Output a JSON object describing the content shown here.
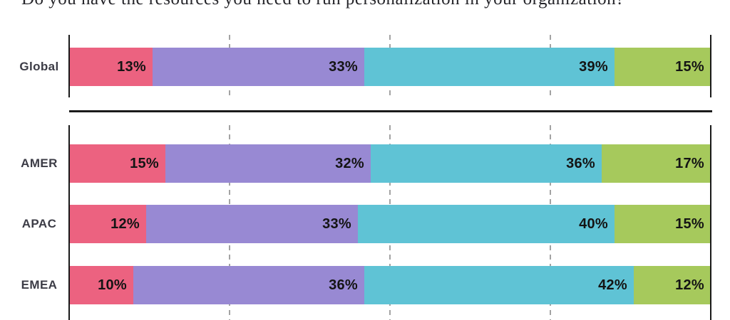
{
  "title": "Do you have the resources you need to run personalization in your organization?",
  "colors": {
    "segment_pink": "#EC6280",
    "segment_purple": "#9889D3",
    "segment_teal": "#5FC3D5",
    "segment_green": "#A6C95C",
    "row_label": "#3C3C46",
    "value_label": "#141414",
    "axis": "#1A1A1A",
    "gridline": "#A3A3A3",
    "divider": "#1B1B1B"
  },
  "chart_data": {
    "type": "bar",
    "orientation": "horizontal",
    "stacked": true,
    "unit": "%",
    "title": "Do you have the resources you need to run personalization in your organization?",
    "categories": [
      "Global",
      "AMER",
      "APAC",
      "EMEA"
    ],
    "series": [
      {
        "name": "series-1",
        "color": "#EC6280",
        "values": [
          13,
          15,
          12,
          10
        ]
      },
      {
        "name": "series-2",
        "color": "#9889D3",
        "values": [
          33,
          32,
          33,
          36
        ]
      },
      {
        "name": "series-3",
        "color": "#5FC3D5",
        "values": [
          39,
          36,
          40,
          42
        ]
      },
      {
        "name": "series-4",
        "color": "#A6C95C",
        "values": [
          15,
          17,
          15,
          12
        ]
      }
    ],
    "xlim": [
      0,
      100
    ],
    "gridlines_percent": [
      25,
      50,
      75
    ],
    "grid": "dashed-vertical",
    "legend_position": "none",
    "sections": [
      {
        "rows": [
          "Global"
        ]
      },
      {
        "rows": [
          "AMER",
          "APAC",
          "EMEA"
        ]
      }
    ]
  }
}
